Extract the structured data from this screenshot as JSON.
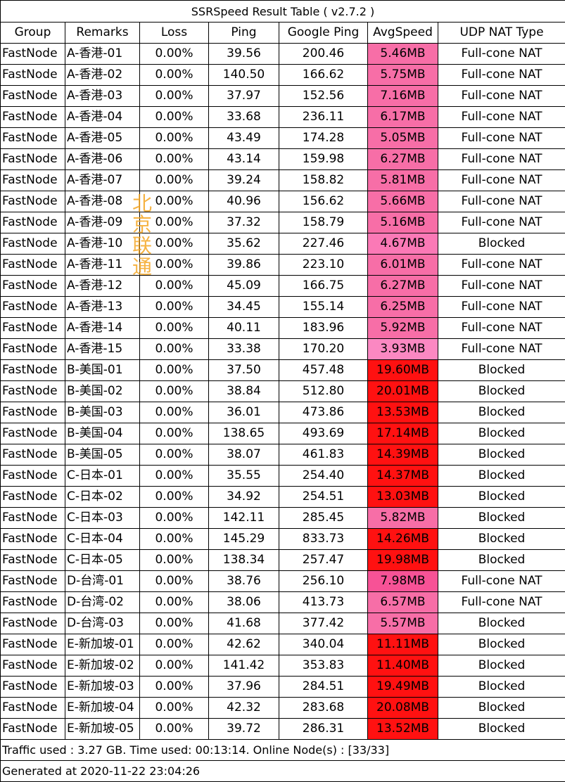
{
  "title": "SSRSpeed Result Table ( v2.7.2 )",
  "headers": [
    "Group",
    "Remarks",
    "Loss",
    "Ping",
    "Google Ping",
    "AvgSpeed",
    "UDP NAT Type"
  ],
  "speed_colors": {
    "pink": "#ff79b4",
    "red": "#ff1111"
  },
  "rows": [
    {
      "group": "FastNode",
      "remarks": "A-香港-01",
      "loss": "0.00%",
      "ping": "39.56",
      "google_ping": "200.46",
      "avg_speed": "5.46MB",
      "color": "#f76ea7",
      "nat": "Full-cone NAT"
    },
    {
      "group": "FastNode",
      "remarks": "A-香港-02",
      "loss": "0.00%",
      "ping": "140.50",
      "google_ping": "166.62",
      "avg_speed": "5.75MB",
      "color": "#f76ea7",
      "nat": "Full-cone NAT"
    },
    {
      "group": "FastNode",
      "remarks": "A-香港-03",
      "loss": "0.00%",
      "ping": "37.97",
      "google_ping": "152.56",
      "avg_speed": "7.16MB",
      "color": "#f76ea7",
      "nat": "Full-cone NAT"
    },
    {
      "group": "FastNode",
      "remarks": "A-香港-04",
      "loss": "0.00%",
      "ping": "33.68",
      "google_ping": "236.11",
      "avg_speed": "6.17MB",
      "color": "#f76ea7",
      "nat": "Full-cone NAT"
    },
    {
      "group": "FastNode",
      "remarks": "A-香港-05",
      "loss": "0.00%",
      "ping": "43.49",
      "google_ping": "174.28",
      "avg_speed": "5.05MB",
      "color": "#f76ea7",
      "nat": "Full-cone NAT"
    },
    {
      "group": "FastNode",
      "remarks": "A-香港-06",
      "loss": "0.00%",
      "ping": "43.14",
      "google_ping": "159.98",
      "avg_speed": "6.27MB",
      "color": "#f76ea7",
      "nat": "Full-cone NAT"
    },
    {
      "group": "FastNode",
      "remarks": "A-香港-07",
      "loss": "0.00%",
      "ping": "39.24",
      "google_ping": "158.82",
      "avg_speed": "5.81MB",
      "color": "#f76ea7",
      "nat": "Full-cone NAT"
    },
    {
      "group": "FastNode",
      "remarks": "A-香港-08",
      "loss": "0.00%",
      "ping": "40.96",
      "google_ping": "156.62",
      "avg_speed": "5.66MB",
      "color": "#f76ea7",
      "nat": "Full-cone NAT"
    },
    {
      "group": "FastNode",
      "remarks": "A-香港-09",
      "loss": "0.00%",
      "ping": "37.32",
      "google_ping": "158.79",
      "avg_speed": "5.16MB",
      "color": "#f76ea7",
      "nat": "Full-cone NAT"
    },
    {
      "group": "FastNode",
      "remarks": "A-香港-10",
      "loss": "0.00%",
      "ping": "35.62",
      "google_ping": "227.46",
      "avg_speed": "4.67MB",
      "color": "#fb79b6",
      "nat": "Blocked"
    },
    {
      "group": "FastNode",
      "remarks": "A-香港-11",
      "loss": "0.00%",
      "ping": "39.86",
      "google_ping": "223.10",
      "avg_speed": "6.01MB",
      "color": "#f76ea7",
      "nat": "Full-cone NAT"
    },
    {
      "group": "FastNode",
      "remarks": "A-香港-12",
      "loss": "0.00%",
      "ping": "45.09",
      "google_ping": "166.75",
      "avg_speed": "6.27MB",
      "color": "#f76ea7",
      "nat": "Full-cone NAT"
    },
    {
      "group": "FastNode",
      "remarks": "A-香港-13",
      "loss": "0.00%",
      "ping": "34.45",
      "google_ping": "155.14",
      "avg_speed": "6.25MB",
      "color": "#f76ea7",
      "nat": "Full-cone NAT"
    },
    {
      "group": "FastNode",
      "remarks": "A-香港-14",
      "loss": "0.00%",
      "ping": "40.11",
      "google_ping": "183.96",
      "avg_speed": "5.92MB",
      "color": "#f76ea7",
      "nat": "Full-cone NAT"
    },
    {
      "group": "FastNode",
      "remarks": "A-香港-15",
      "loss": "0.00%",
      "ping": "33.38",
      "google_ping": "170.20",
      "avg_speed": "3.93MB",
      "color": "#fb88c2",
      "nat": "Full-cone NAT"
    },
    {
      "group": "FastNode",
      "remarks": "B-美国-01",
      "loss": "0.00%",
      "ping": "37.50",
      "google_ping": "457.48",
      "avg_speed": "19.60MB",
      "color": "#ff1111",
      "nat": "Blocked"
    },
    {
      "group": "FastNode",
      "remarks": "B-美国-02",
      "loss": "0.00%",
      "ping": "38.84",
      "google_ping": "512.80",
      "avg_speed": "20.01MB",
      "color": "#ff1111",
      "nat": "Blocked"
    },
    {
      "group": "FastNode",
      "remarks": "B-美国-03",
      "loss": "0.00%",
      "ping": "36.01",
      "google_ping": "473.86",
      "avg_speed": "13.53MB",
      "color": "#ff1111",
      "nat": "Blocked"
    },
    {
      "group": "FastNode",
      "remarks": "B-美国-04",
      "loss": "0.00%",
      "ping": "138.65",
      "google_ping": "493.69",
      "avg_speed": "17.14MB",
      "color": "#ff1111",
      "nat": "Blocked"
    },
    {
      "group": "FastNode",
      "remarks": "B-美国-05",
      "loss": "0.00%",
      "ping": "38.07",
      "google_ping": "461.83",
      "avg_speed": "14.39MB",
      "color": "#ff1111",
      "nat": "Blocked"
    },
    {
      "group": "FastNode",
      "remarks": "C-日本-01",
      "loss": "0.00%",
      "ping": "35.55",
      "google_ping": "254.40",
      "avg_speed": "14.37MB",
      "color": "#ff1111",
      "nat": "Blocked"
    },
    {
      "group": "FastNode",
      "remarks": "C-日本-02",
      "loss": "0.00%",
      "ping": "34.92",
      "google_ping": "254.51",
      "avg_speed": "13.03MB",
      "color": "#ff1111",
      "nat": "Blocked"
    },
    {
      "group": "FastNode",
      "remarks": "C-日本-03",
      "loss": "0.00%",
      "ping": "142.11",
      "google_ping": "285.45",
      "avg_speed": "5.82MB",
      "color": "#f76ea7",
      "nat": "Blocked"
    },
    {
      "group": "FastNode",
      "remarks": "C-日本-04",
      "loss": "0.00%",
      "ping": "145.29",
      "google_ping": "833.73",
      "avg_speed": "14.26MB",
      "color": "#ff1111",
      "nat": "Blocked"
    },
    {
      "group": "FastNode",
      "remarks": "C-日本-05",
      "loss": "0.00%",
      "ping": "138.34",
      "google_ping": "257.47",
      "avg_speed": "19.98MB",
      "color": "#ff1111",
      "nat": "Blocked"
    },
    {
      "group": "FastNode",
      "remarks": "D-台湾-01",
      "loss": "0.00%",
      "ping": "38.76",
      "google_ping": "256.10",
      "avg_speed": "7.98MB",
      "color": "#f75296",
      "nat": "Full-cone NAT"
    },
    {
      "group": "FastNode",
      "remarks": "D-台湾-02",
      "loss": "0.00%",
      "ping": "38.06",
      "google_ping": "413.73",
      "avg_speed": "6.57MB",
      "color": "#f76ea7",
      "nat": "Full-cone NAT"
    },
    {
      "group": "FastNode",
      "remarks": "D-台湾-03",
      "loss": "0.00%",
      "ping": "41.68",
      "google_ping": "377.42",
      "avg_speed": "5.57MB",
      "color": "#f76ea7",
      "nat": "Blocked"
    },
    {
      "group": "FastNode",
      "remarks": "E-新加坡-01",
      "loss": "0.00%",
      "ping": "42.62",
      "google_ping": "340.04",
      "avg_speed": "11.11MB",
      "color": "#ff1111",
      "nat": "Blocked"
    },
    {
      "group": "FastNode",
      "remarks": "E-新加坡-02",
      "loss": "0.00%",
      "ping": "141.42",
      "google_ping": "353.83",
      "avg_speed": "11.40MB",
      "color": "#ff1111",
      "nat": "Blocked"
    },
    {
      "group": "FastNode",
      "remarks": "E-新加坡-03",
      "loss": "0.00%",
      "ping": "37.96",
      "google_ping": "284.51",
      "avg_speed": "19.49MB",
      "color": "#ff1111",
      "nat": "Blocked"
    },
    {
      "group": "FastNode",
      "remarks": "E-新加坡-04",
      "loss": "0.00%",
      "ping": "42.32",
      "google_ping": "283.68",
      "avg_speed": "20.08MB",
      "color": "#ff1111",
      "nat": "Blocked"
    },
    {
      "group": "FastNode",
      "remarks": "E-新加坡-05",
      "loss": "0.00%",
      "ping": "39.72",
      "google_ping": "286.31",
      "avg_speed": "13.52MB",
      "color": "#ff1111",
      "nat": "Blocked"
    }
  ],
  "footer": {
    "traffic": "Traffic used : 3.27 GB. Time used: 00:13:14. Online Node(s) : [33/33]",
    "generated": "Generated at 2020-11-22 23:04:26"
  },
  "watermark": [
    "北",
    "京",
    "联",
    "通"
  ]
}
